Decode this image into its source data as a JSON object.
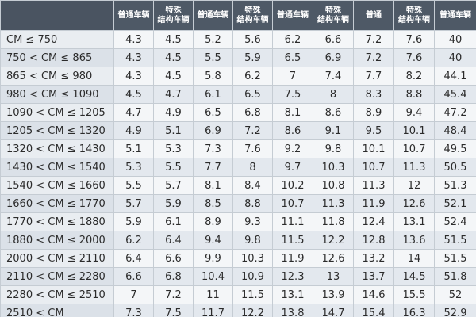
{
  "headers": [
    "普通车辆",
    "特殊\n结构车辆",
    "普通车辆",
    "特殊\n结构车辆",
    "普通车辆",
    "特殊\n结构车辆",
    "普通",
    "特殊\n结构车辆",
    "普通车辆"
  ],
  "rows": [
    {
      "range": "CM ≤ 750",
      "values": [
        "4.3",
        "4.5",
        "5.2",
        "5.6",
        "6.2",
        "6.6",
        "7.2",
        "7.6",
        "40"
      ]
    },
    {
      "range": "750 < CM ≤ 865",
      "values": [
        "4.3",
        "4.5",
        "5.5",
        "5.9",
        "6.5",
        "6.9",
        "7.2",
        "7.6",
        "40"
      ]
    },
    {
      "range": "865 < CM ≤ 980",
      "values": [
        "4.3",
        "4.5",
        "5.8",
        "6.2",
        "7",
        "7.4",
        "7.7",
        "8.2",
        "44.1"
      ]
    },
    {
      "range": "980 < CM ≤ 1090",
      "values": [
        "4.5",
        "4.7",
        "6.1",
        "6.5",
        "7.5",
        "8",
        "8.3",
        "8.8",
        "45.4"
      ]
    },
    {
      "range": "1090 < CM ≤ 1205",
      "values": [
        "4.7",
        "4.9",
        "6.5",
        "6.8",
        "8.1",
        "8.6",
        "8.9",
        "9.4",
        "47.2"
      ]
    },
    {
      "range": "1205 < CM ≤ 1320",
      "values": [
        "4.9",
        "5.1",
        "6.9",
        "7.2",
        "8.6",
        "9.1",
        "9.5",
        "10.1",
        "48.4"
      ]
    },
    {
      "range": "1320 < CM ≤ 1430",
      "values": [
        "5.1",
        "5.3",
        "7.3",
        "7.6",
        "9.2",
        "9.8",
        "10.1",
        "10.7",
        "49.5"
      ]
    },
    {
      "range": "1430 < CM ≤ 1540",
      "values": [
        "5.3",
        "5.5",
        "7.7",
        "8",
        "9.7",
        "10.3",
        "10.7",
        "11.3",
        "50.5"
      ]
    },
    {
      "range": "1540 < CM ≤ 1660",
      "values": [
        "5.5",
        "5.7",
        "8.1",
        "8.4",
        "10.2",
        "10.8",
        "11.3",
        "12",
        "51.3"
      ]
    },
    {
      "range": "1660 < CM ≤ 1770",
      "values": [
        "5.7",
        "5.9",
        "8.5",
        "8.8",
        "10.7",
        "11.3",
        "11.9",
        "12.6",
        "52.1"
      ]
    },
    {
      "range": "1770 < CM ≤ 1880",
      "values": [
        "5.9",
        "6.1",
        "8.9",
        "9.3",
        "11.1",
        "11.8",
        "12.4",
        "13.1",
        "52.4"
      ]
    },
    {
      "range": "1880 < CM ≤ 2000",
      "values": [
        "6.2",
        "6.4",
        "9.4",
        "9.8",
        "11.5",
        "12.2",
        "12.8",
        "13.6",
        "51.5"
      ]
    },
    {
      "range": "2000 < CM ≤ 2110",
      "values": [
        "6.4",
        "6.6",
        "9.9",
        "10.3",
        "11.9",
        "12.6",
        "13.2",
        "14",
        "51.5"
      ]
    },
    {
      "range": "2110 < CM ≤ 2280",
      "values": [
        "6.6",
        "6.8",
        "10.4",
        "10.9",
        "12.3",
        "13",
        "13.7",
        "14.5",
        "51.8"
      ]
    },
    {
      "range": "2280 < CM ≤ 2510",
      "values": [
        "7",
        "7.2",
        "11",
        "11.5",
        "13.1",
        "13.9",
        "14.6",
        "15.5",
        "52"
      ]
    },
    {
      "range": "2510 < CM",
      "values": [
        "7.3",
        "7.5",
        "11.7",
        "12.2",
        "13.8",
        "14.7",
        "15.4",
        "16.3",
        "52.9"
      ]
    }
  ]
}
